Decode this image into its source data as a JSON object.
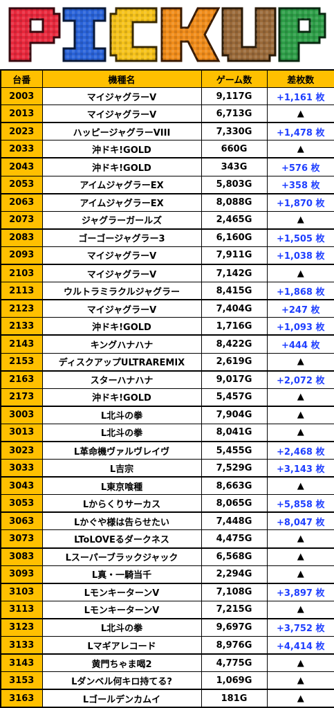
{
  "banner": {
    "text": "PICKUP",
    "colors": [
      "#e8283c",
      "#2a63d8",
      "#f5c21a",
      "#f08c1a",
      "#9a6a3a",
      "#2e9e48"
    ]
  },
  "headers": {
    "machine_no": "台番",
    "model": "機種名",
    "games": "ゲーム数",
    "diff": "差枚数"
  },
  "rows": [
    {
      "no": "2003",
      "model": "マイジャグラーV",
      "games": "9,117G",
      "diff": "+1,161 枚"
    },
    {
      "no": "2013",
      "model": "マイジャグラーV",
      "games": "6,713G",
      "diff": "▲"
    },
    {
      "no": "2023",
      "model": "ハッピージャグラーVIII",
      "games": "7,330G",
      "diff": "+1,478 枚"
    },
    {
      "no": "2033",
      "model": "沖ドキ!GOLD",
      "games": "660G",
      "diff": "▲"
    },
    {
      "no": "2043",
      "model": "沖ドキ!GOLD",
      "games": "343G",
      "diff": "+576 枚"
    },
    {
      "no": "2053",
      "model": "アイムジャグラーEX",
      "games": "5,803G",
      "diff": "+358 枚"
    },
    {
      "no": "2063",
      "model": "アイムジャグラーEX",
      "games": "8,088G",
      "diff": "+1,870 枚"
    },
    {
      "no": "2073",
      "model": "ジャグラーガールズ",
      "games": "2,465G",
      "diff": "▲"
    },
    {
      "no": "2083",
      "model": "ゴーゴージャグラー3",
      "games": "6,160G",
      "diff": "+1,505 枚"
    },
    {
      "no": "2093",
      "model": "マイジャグラーV",
      "games": "7,911G",
      "diff": "+1,038 枚"
    },
    {
      "no": "2103",
      "model": "マイジャグラーV",
      "games": "7,142G",
      "diff": "▲"
    },
    {
      "no": "2113",
      "model": "ウルトラミラクルジャグラー",
      "games": "8,415G",
      "diff": "+1,868 枚"
    },
    {
      "no": "2123",
      "model": "マイジャグラーV",
      "games": "7,404G",
      "diff": "+247 枚"
    },
    {
      "no": "2133",
      "model": "沖ドキ!GOLD",
      "games": "1,716G",
      "diff": "+1,093 枚"
    },
    {
      "no": "2143",
      "model": "キングハナハナ",
      "games": "8,422G",
      "diff": "+444 枚"
    },
    {
      "no": "2153",
      "model": "ディスクアップULTRAREMIX",
      "games": "2,619G",
      "diff": "▲"
    },
    {
      "no": "2163",
      "model": "スターハナハナ",
      "games": "9,017G",
      "diff": "+2,072 枚"
    },
    {
      "no": "2173",
      "model": "沖ドキ!GOLD",
      "games": "5,457G",
      "diff": "▲"
    },
    {
      "no": "3003",
      "model": "L北斗の拳",
      "games": "7,904G",
      "diff": "▲"
    },
    {
      "no": "3013",
      "model": "L北斗の拳",
      "games": "8,041G",
      "diff": "▲"
    },
    {
      "no": "3023",
      "model": "L革命機ヴァルヴレイヴ",
      "games": "5,455G",
      "diff": "+2,468 枚"
    },
    {
      "no": "3033",
      "model": "L吉宗",
      "games": "7,529G",
      "diff": "+3,143 枚"
    },
    {
      "no": "3043",
      "model": "L東京喰種",
      "games": "8,663G",
      "diff": "▲"
    },
    {
      "no": "3053",
      "model": "Lからくりサーカス",
      "games": "8,065G",
      "diff": "+5,858 枚"
    },
    {
      "no": "3063",
      "model": "Lかぐや様は告らせたい",
      "games": "7,448G",
      "diff": "+8,047 枚"
    },
    {
      "no": "3073",
      "model": "LToLOVEるダークネス",
      "games": "4,475G",
      "diff": "▲"
    },
    {
      "no": "3083",
      "model": "Lスーパーブラックジャック",
      "games": "6,568G",
      "diff": "▲"
    },
    {
      "no": "3093",
      "model": "L真・一騎当千",
      "games": "2,294G",
      "diff": "▲"
    },
    {
      "no": "3103",
      "model": "LモンキーターンV",
      "games": "7,108G",
      "diff": "+3,897 枚"
    },
    {
      "no": "3113",
      "model": "LモンキーターンV",
      "games": "7,215G",
      "diff": "▲"
    },
    {
      "no": "3123",
      "model": "L北斗の拳",
      "games": "9,697G",
      "diff": "+3,752 枚"
    },
    {
      "no": "3133",
      "model": "Lマギアレコード",
      "games": "8,976G",
      "diff": "+4,414 枚"
    },
    {
      "no": "3143",
      "model": "黄門ちゃま喝2",
      "games": "4,775G",
      "diff": "▲"
    },
    {
      "no": "3153",
      "model": "Lダンベル何キロ持てる?",
      "games": "1,069G",
      "diff": "▲"
    },
    {
      "no": "3163",
      "model": "Lゴールデンカムイ",
      "games": "181G",
      "diff": "▲"
    }
  ]
}
